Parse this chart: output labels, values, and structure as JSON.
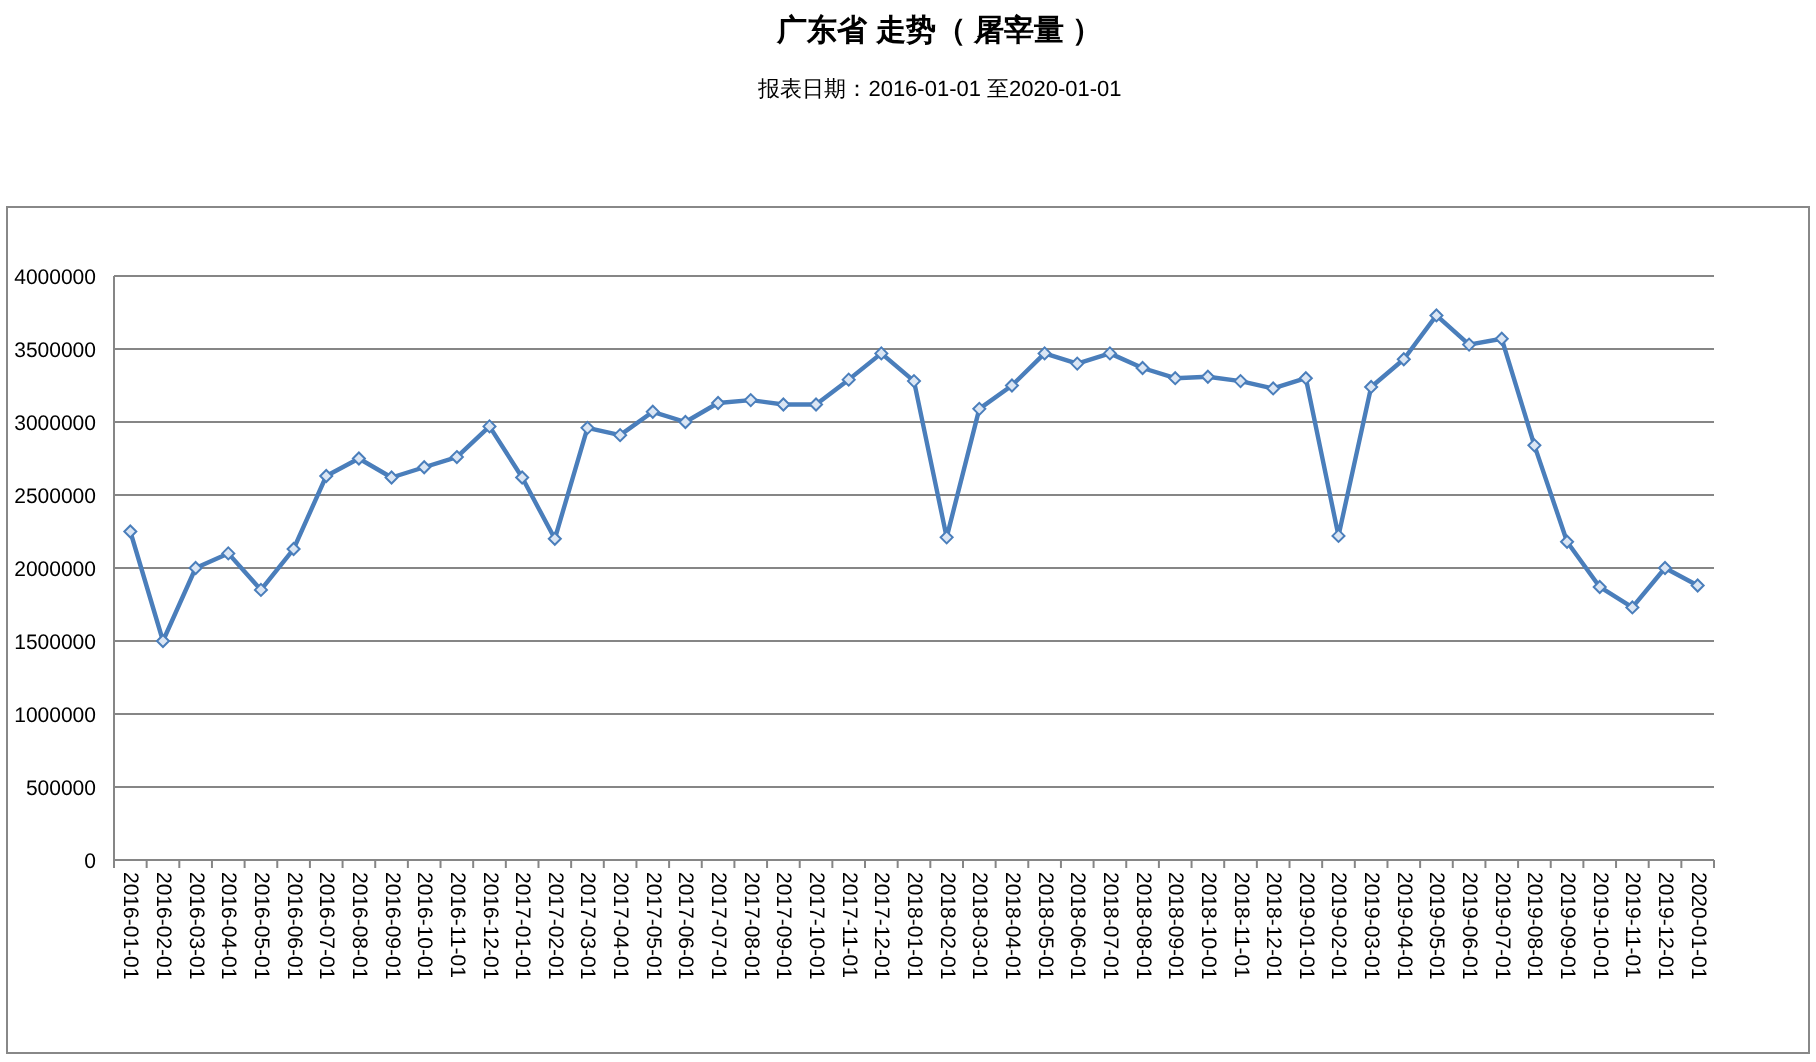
{
  "chart_data": {
    "type": "line",
    "title": "广东省 走势（ 屠宰量 ）",
    "subtitle": "报表日期：2016-01-01 至2020-01-01",
    "categories": [
      "2016-01-01",
      "2016-02-01",
      "2016-03-01",
      "2016-04-01",
      "2016-05-01",
      "2016-06-01",
      "2016-07-01",
      "2016-08-01",
      "2016-09-01",
      "2016-10-01",
      "2016-11-01",
      "2016-12-01",
      "2017-01-01",
      "2017-02-01",
      "2017-03-01",
      "2017-04-01",
      "2017-05-01",
      "2017-06-01",
      "2017-07-01",
      "2017-08-01",
      "2017-09-01",
      "2017-10-01",
      "2017-11-01",
      "2017-12-01",
      "2018-01-01",
      "2018-02-01",
      "2018-03-01",
      "2018-04-01",
      "2018-05-01",
      "2018-06-01",
      "2018-07-01",
      "2018-08-01",
      "2018-09-01",
      "2018-10-01",
      "2018-11-01",
      "2018-12-01",
      "2019-01-01",
      "2019-02-01",
      "2019-03-01",
      "2019-04-01",
      "2019-05-01",
      "2019-06-01",
      "2019-07-01",
      "2019-08-01",
      "2019-09-01",
      "2019-10-01",
      "2019-11-01",
      "2019-12-01",
      "2020-01-01"
    ],
    "values": [
      2250000,
      1500000,
      2000000,
      2100000,
      1850000,
      2130000,
      2630000,
      2750000,
      2620000,
      2690000,
      2760000,
      2970000,
      2620000,
      2200000,
      2960000,
      2910000,
      3070000,
      3000000,
      3130000,
      3150000,
      3120000,
      3120000,
      3290000,
      3470000,
      3280000,
      2210000,
      3090000,
      3250000,
      3470000,
      3400000,
      3470000,
      3370000,
      3300000,
      3310000,
      3280000,
      3230000,
      3300000,
      2220000,
      3240000,
      3430000,
      3730000,
      3530000,
      3570000,
      2840000,
      2180000,
      1870000,
      1730000,
      2000000,
      1880000
    ],
    "color": "#4a7ebb",
    "ylim": [
      0,
      4000000
    ],
    "yticks": [
      0,
      500000,
      1000000,
      1500000,
      2000000,
      2500000,
      3000000,
      3500000,
      4000000
    ],
    "grid": "y",
    "marker": "diamond",
    "line_style": "solid"
  }
}
